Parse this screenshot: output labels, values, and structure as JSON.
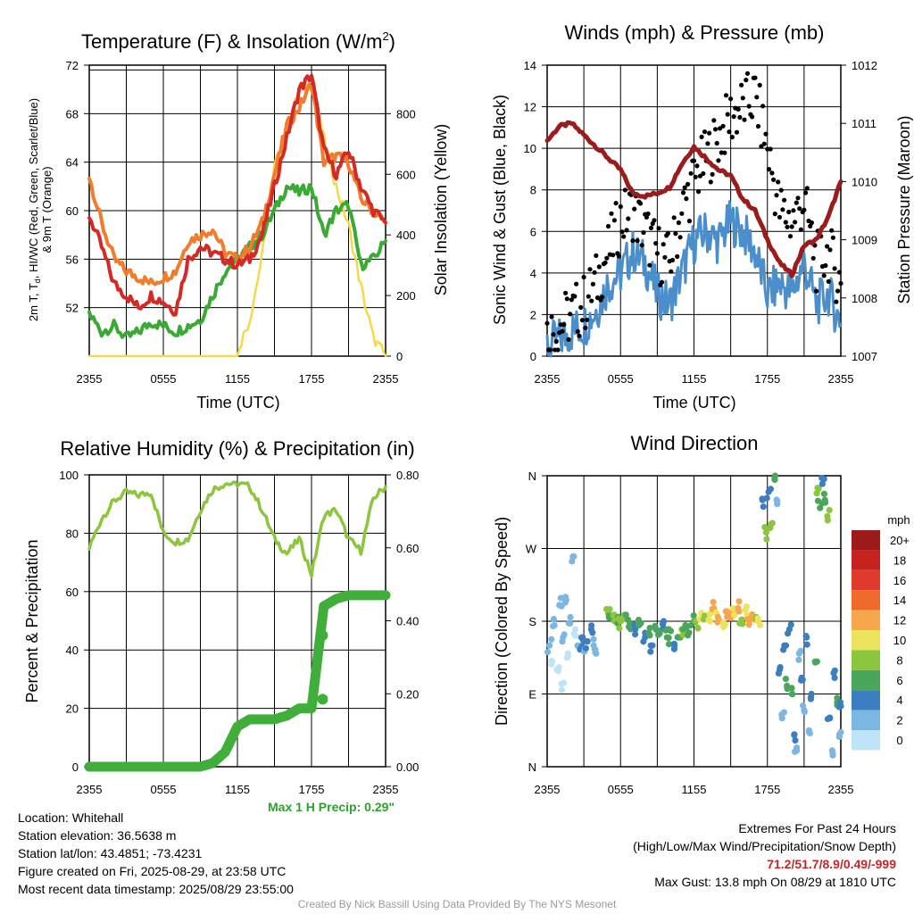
{
  "panels": {
    "temperature": {
      "title": "Temperature (F) & Insolation (W/m",
      "title_sup": "2",
      "title_close": ")",
      "xlabel": "Time (UTC)",
      "ylabel_line1": "2m T, T",
      "ylabel_sub": "d",
      "ylabel_line1_rest": ", HI/WC (Red, Green, Scarlet/Blue)",
      "ylabel_line2": "& 9m T (Orange)",
      "ylabel_right": "Solar Insolation (Yellow)"
    },
    "winds": {
      "title": "Winds (mph) & Pressure (mb)",
      "xlabel": "Time (UTC)",
      "ylabel": "Sonic Wind & Gust (Blue, Black)",
      "ylabel_right": "Station Pressure (Maroon)"
    },
    "humidity": {
      "title": "Relative Humidity (%) & Precipitation (in)",
      "ylabel": "Percent & Precipitation",
      "max_precip": "Max 1 H Precip: 0.29\""
    },
    "direction": {
      "title": "Wind Direction",
      "ylabel": "Direction (Colored By Speed)",
      "legend_title": "mph"
    }
  },
  "info": {
    "location": "Location: Whitehall",
    "elevation": "Station elevation: 36.5638 m",
    "latlon": "Station lat/lon: 43.4851; -73.4231",
    "created": "Figure created on Fri, 2025-08-29, at 23:58 UTC",
    "recent": "Most recent data timestamp: 2025/08/29 23:55:00"
  },
  "extremes": {
    "title": "Extremes For Past 24 Hours",
    "subtitle": "(High/Low/Max Wind/Precipitation/Snow Depth)",
    "values": "71.2/51.7/8.9/0.49/-999",
    "max_gust": "Max Gust: 13.8 mph On 08/29 at 1810 UTC"
  },
  "credit": "Created By Nick Bassill Using Data Provided By The NYS Mesonet",
  "colors": {
    "temp": "#d42a26",
    "dewpoint": "#3aaa35",
    "nine_m_temp": "#f07c2c",
    "solar": "#f5d94a",
    "wind": "#4a8ecb",
    "gust": "#000000",
    "pressure": "#9b1c1c",
    "rh": "#8cc63f",
    "precip": "#3fae3a"
  },
  "chart_data": [
    {
      "id": "temperature",
      "type": "line",
      "title": "Temperature (F) & Insolation (W/m2)",
      "xlabel": "Time (UTC)",
      "ylabel": "2m T, Td, HI/WC (Red, Green, Scarlet/Blue) & 9m T (Orange)",
      "ylabel_right": "Solar Insolation (Yellow)",
      "x_ticks": [
        "2355",
        "0555",
        "1155",
        "1755",
        "2355"
      ],
      "x": [
        0,
        1,
        2,
        3,
        4,
        5,
        6,
        7,
        8,
        9,
        10,
        11,
        12,
        13,
        14,
        15,
        16,
        17,
        18,
        19,
        20,
        21,
        22,
        23,
        24
      ],
      "ylim": [
        48,
        72
      ],
      "y_ticks": [
        52,
        56,
        60,
        64,
        68,
        72
      ],
      "ylim_right": [
        0,
        960
      ],
      "y_ticks_right": [
        0,
        200,
        400,
        600,
        800
      ],
      "grid": true,
      "series": [
        {
          "name": "2m T (Red)",
          "axis": "left",
          "values": [
            59.6,
            57,
            54,
            53,
            52,
            53,
            52.5,
            51.7,
            56,
            57,
            56.5,
            56,
            55.5,
            56,
            58,
            62,
            66,
            70,
            71.2,
            65,
            63,
            65,
            62,
            60,
            59
          ]
        },
        {
          "name": "Td (Green)",
          "axis": "left",
          "values": [
            51.5,
            50,
            50.5,
            49.5,
            50,
            50.8,
            50.5,
            50,
            50.5,
            51,
            53,
            55,
            56,
            57,
            58,
            60,
            62,
            61.5,
            62,
            58,
            60,
            60.5,
            55.5,
            56,
            57.5
          ]
        },
        {
          "name": "9m T (Orange)",
          "axis": "left",
          "values": [
            62.8,
            59,
            56,
            55,
            54.5,
            54,
            54.5,
            55,
            57.5,
            58,
            58.5,
            56.5,
            56,
            57,
            59,
            63,
            67,
            68.5,
            70.5,
            64,
            64.5,
            64,
            61,
            60,
            59
          ]
        },
        {
          "name": "Solar Insolation (Yellow)",
          "axis": "right",
          "values": [
            0,
            0,
            0,
            0,
            0,
            0,
            0,
            0,
            0,
            0,
            0,
            0,
            20,
            120,
            330,
            620,
            760,
            870,
            900,
            720,
            560,
            430,
            230,
            60,
            0
          ]
        }
      ]
    },
    {
      "id": "winds",
      "type": "scatter",
      "title": "Winds (mph) & Pressure (mb)",
      "xlabel": "Time (UTC)",
      "ylabel": "Sonic Wind & Gust (Blue, Black)",
      "ylabel_right": "Station Pressure (Maroon)",
      "x_ticks": [
        "2355",
        "0555",
        "1155",
        "1755",
        "2355"
      ],
      "x": [
        0,
        1,
        2,
        3,
        4,
        5,
        6,
        7,
        8,
        9,
        10,
        11,
        12,
        13,
        14,
        15,
        16,
        17,
        18,
        19,
        20,
        21,
        22,
        23,
        24
      ],
      "ylim": [
        0,
        14
      ],
      "y_ticks": [
        0,
        2,
        4,
        6,
        8,
        10,
        12,
        14
      ],
      "ylim_right": [
        1007,
        1012
      ],
      "y_ticks_right": [
        1007,
        1008,
        1009,
        1010,
        1011,
        1012
      ],
      "grid": true,
      "series": [
        {
          "name": "Sonic Wind (Blue)",
          "axis": "left",
          "values": [
            0.5,
            0.8,
            1.2,
            1.5,
            2.2,
            3.5,
            4.0,
            5.0,
            4.5,
            3.0,
            2.5,
            4.0,
            5.5,
            6.0,
            5.5,
            6.5,
            6.0,
            5.0,
            3.0,
            3.5,
            3.0,
            4.5,
            2.5,
            3.0,
            1.5
          ]
        },
        {
          "name": "Gust (Black)",
          "axis": "left",
          "values": [
            1.0,
            1.5,
            2.0,
            2.5,
            3.5,
            5.0,
            6.5,
            7.0,
            6.0,
            5.0,
            4.5,
            7.0,
            8.5,
            9.5,
            10.5,
            11.5,
            12.0,
            12.5,
            10.0,
            7.0,
            6.5,
            7.5,
            4.5,
            5.0,
            3.5
          ]
        },
        {
          "name": "Station Pressure (Maroon)",
          "axis": "right",
          "values": [
            1010.7,
            1010.95,
            1011.0,
            1010.8,
            1010.6,
            1010.4,
            1010.2,
            1009.8,
            1009.75,
            1009.8,
            1009.9,
            1010.3,
            1010.6,
            1010.4,
            1010.2,
            1010.1,
            1009.7,
            1009.5,
            1009.0,
            1008.6,
            1008.4,
            1008.9,
            1009.0,
            1009.4,
            1010.0
          ]
        }
      ]
    },
    {
      "id": "humidity",
      "type": "line",
      "title": "Relative Humidity (%) & Precipitation (in)",
      "ylabel": "Percent & Precipitation",
      "x_ticks": [
        "2355",
        "0555",
        "1155",
        "1755",
        "2355"
      ],
      "x": [
        0,
        1,
        2,
        3,
        4,
        5,
        6,
        7,
        8,
        9,
        10,
        11,
        12,
        13,
        14,
        15,
        16,
        17,
        18,
        19,
        20,
        21,
        22,
        23,
        24
      ],
      "ylim": [
        0,
        100
      ],
      "y_ticks": [
        0,
        20,
        40,
        60,
        80,
        100
      ],
      "ylim_right": [
        0,
        0.8
      ],
      "y_ticks_right": [
        "0.00",
        "0.20",
        "0.40",
        "0.60",
        "0.80"
      ],
      "grid": true,
      "series": [
        {
          "name": "Relative Humidity",
          "axis": "left",
          "values": [
            75,
            85,
            91,
            94,
            93,
            94,
            80,
            77,
            78,
            88,
            95,
            97,
            97,
            96,
            88,
            78,
            73,
            78,
            66,
            86,
            88,
            78,
            74,
            92,
            96
          ]
        },
        {
          "name": "Precipitation",
          "axis": "right",
          "values": [
            0,
            0,
            0,
            0,
            0,
            0,
            0,
            0,
            0,
            0,
            0.01,
            0.04,
            0.11,
            0.13,
            0.13,
            0.13,
            0.14,
            0.16,
            0.16,
            0.44,
            0.46,
            0.47,
            0.47,
            0.47,
            0.47
          ]
        },
        {
          "name": "Precipitation spikes",
          "axis": "right",
          "points": [
            [
              18.9,
              0.185
            ],
            [
              18.9,
              0.36
            ]
          ]
        }
      ]
    },
    {
      "id": "direction",
      "type": "scatter",
      "title": "Wind Direction",
      "ylabel": "Direction (Colored By Speed)",
      "x_ticks": [
        "2355",
        "0555",
        "1155",
        "1755",
        "2355"
      ],
      "y_ticks": [
        "N",
        "E",
        "S",
        "W",
        "N"
      ],
      "ylim": [
        0,
        360
      ],
      "grid": true,
      "legend": {
        "title": "mph",
        "placement": "right",
        "labels": [
          "20+",
          "18",
          "16",
          "14",
          "12",
          "10",
          "8",
          "6",
          "4",
          "2",
          "0"
        ],
        "colors": [
          "#9e1a1a",
          "#c8221f",
          "#e03a2d",
          "#ef6b2c",
          "#f6a74c",
          "#ece45c",
          "#8cc63f",
          "#4aa55d",
          "#3c7ebf",
          "#7cb7e3",
          "#bfe3f7"
        ]
      },
      "points": [
        [
          0.2,
          150,
          1
        ],
        [
          0.4,
          130,
          0
        ],
        [
          0.6,
          175,
          1
        ],
        [
          0.8,
          120,
          0
        ],
        [
          1.0,
          200,
          1
        ],
        [
          1.2,
          95,
          0
        ],
        [
          1.3,
          160,
          1
        ],
        [
          1.5,
          210,
          1
        ],
        [
          1.7,
          140,
          0
        ],
        [
          1.9,
          185,
          1
        ],
        [
          2.1,
          260,
          1
        ],
        [
          2.3,
          170,
          0
        ],
        [
          2.5,
          150,
          1
        ],
        [
          2.7,
          145,
          2
        ],
        [
          2.9,
          160,
          2
        ],
        [
          3.1,
          145,
          1
        ],
        [
          3.3,
          155,
          2
        ],
        [
          3.6,
          170,
          2
        ],
        [
          3.8,
          150,
          1
        ],
        [
          4.0,
          140,
          1
        ],
        [
          5.0,
          190,
          4
        ],
        [
          5.2,
          185,
          3
        ],
        [
          5.5,
          180,
          4
        ],
        [
          5.8,
          185,
          3
        ],
        [
          6.0,
          180,
          4
        ],
        [
          6.3,
          188,
          4
        ],
        [
          6.6,
          182,
          3
        ],
        [
          6.9,
          176,
          3
        ],
        [
          7.2,
          170,
          2
        ],
        [
          7.5,
          175,
          3
        ],
        [
          8.0,
          160,
          2
        ],
        [
          8.3,
          165,
          3
        ],
        [
          8.6,
          150,
          2
        ],
        [
          8.9,
          170,
          3
        ],
        [
          9.2,
          165,
          3
        ],
        [
          9.5,
          172,
          2
        ],
        [
          9.8,
          160,
          3
        ],
        [
          10.1,
          168,
          3
        ],
        [
          10.4,
          150,
          2
        ],
        [
          10.7,
          160,
          3
        ],
        [
          11.0,
          170,
          4
        ],
        [
          11.3,
          175,
          3
        ],
        [
          11.6,
          166,
          3
        ],
        [
          12.0,
          180,
          3
        ],
        [
          12.3,
          172,
          4
        ],
        [
          12.6,
          190,
          5
        ],
        [
          12.9,
          185,
          4
        ],
        [
          13.2,
          182,
          5
        ],
        [
          13.5,
          195,
          6
        ],
        [
          13.8,
          190,
          5
        ],
        [
          14.1,
          180,
          6
        ],
        [
          14.4,
          178,
          5
        ],
        [
          14.7,
          192,
          6
        ],
        [
          15.0,
          184,
          6
        ],
        [
          15.3,
          188,
          5
        ],
        [
          15.6,
          196,
          6
        ],
        [
          15.9,
          182,
          4
        ],
        [
          16.2,
          194,
          5
        ],
        [
          16.5,
          176,
          6
        ],
        [
          16.8,
          186,
          6
        ],
        [
          17.1,
          185,
          4
        ],
        [
          17.4,
          175,
          5
        ],
        [
          17.6,
          330,
          2
        ],
        [
          17.9,
          290,
          4
        ],
        [
          18.1,
          340,
          2
        ],
        [
          18.3,
          300,
          4
        ],
        [
          18.6,
          355,
          3
        ],
        [
          18.8,
          325,
          1
        ],
        [
          19.0,
          120,
          2
        ],
        [
          19.2,
          60,
          1
        ],
        [
          19.4,
          150,
          2
        ],
        [
          19.6,
          100,
          3
        ],
        [
          19.8,
          170,
          2
        ],
        [
          20.0,
          90,
          3
        ],
        [
          20.2,
          40,
          2
        ],
        [
          20.4,
          20,
          1
        ],
        [
          20.6,
          140,
          1
        ],
        [
          20.8,
          110,
          2
        ],
        [
          21.0,
          70,
          1
        ],
        [
          21.2,
          160,
          2
        ],
        [
          21.4,
          45,
          1
        ],
        [
          21.6,
          90,
          2
        ],
        [
          21.9,
          130,
          3
        ],
        [
          22.1,
          345,
          4
        ],
        [
          22.3,
          320,
          3
        ],
        [
          22.5,
          350,
          2
        ],
        [
          22.7,
          330,
          3
        ],
        [
          22.9,
          310,
          4
        ],
        [
          23.1,
          60,
          2
        ],
        [
          23.3,
          20,
          1
        ],
        [
          23.5,
          110,
          2
        ],
        [
          23.7,
          80,
          3
        ],
        [
          23.9,
          40,
          1
        ],
        [
          24.0,
          75,
          2
        ]
      ]
    }
  ]
}
